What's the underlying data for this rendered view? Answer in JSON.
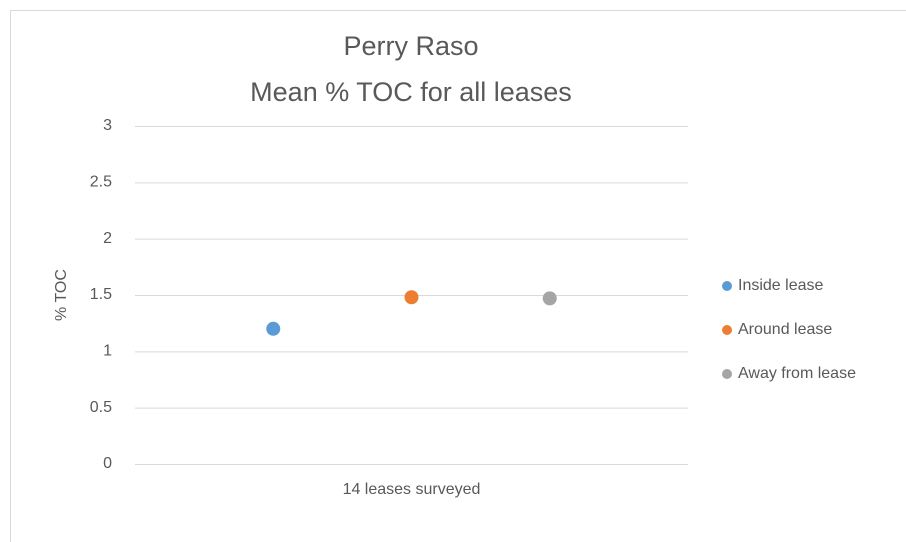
{
  "chart_data": {
    "type": "dot",
    "title": "Perry Raso",
    "subtitle": "Mean % TOC for all leases",
    "y_label": "% TOC",
    "categories": [
      "14 leases surveyed"
    ],
    "series": [
      {
        "name": "Inside lease",
        "color": "#5b9bd5",
        "values": [
          1.2
        ]
      },
      {
        "name": "Around lease",
        "color": "#ed7d31",
        "values": [
          1.48
        ]
      },
      {
        "name": "Away from lease",
        "color": "#a5a5a5",
        "values": [
          1.47
        ]
      }
    ],
    "ylim": [
      0,
      3
    ],
    "yticks": [
      0,
      0.5,
      1,
      1.5,
      2,
      2.5,
      3
    ],
    "grid": true,
    "legend": "right"
  }
}
